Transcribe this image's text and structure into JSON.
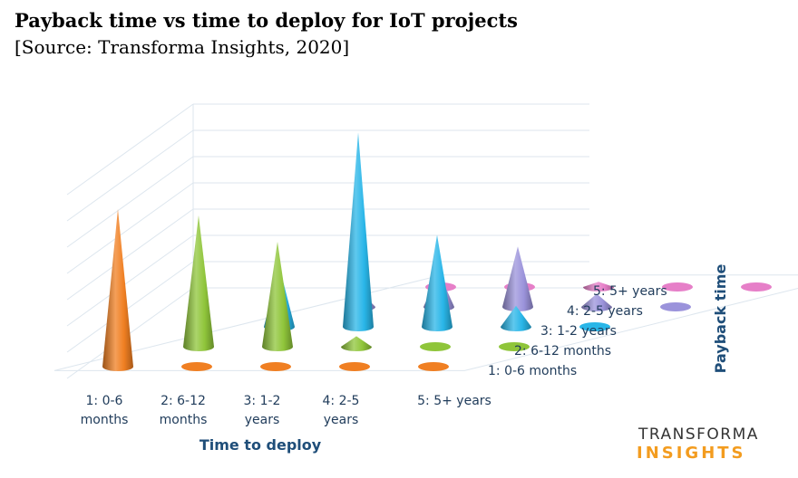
{
  "chart_data": {
    "type": "3d-cone",
    "title": "Payback time vs time to deploy for IoT projects",
    "subtitle": "[Source: Transforma Insights, 2020]",
    "xlabel": "Time to deploy",
    "zlabel": "Payback time",
    "x_categories": [
      "1: 0-6 months",
      "2: 6-12 months",
      "3: 1-2 years",
      "4: 2-5 years",
      "5: 5+ years"
    ],
    "x_tick_lines": [
      [
        "1: 0-6",
        "months"
      ],
      [
        "2: 6-12",
        "months"
      ],
      [
        "3: 1-2",
        "years"
      ],
      [
        "4: 2-5",
        "years"
      ],
      [
        "5: 5+ years"
      ]
    ],
    "series": [
      {
        "name": "1: 0-6 months",
        "color": "#f07f22",
        "values": [
          6,
          0,
          0,
          0,
          0
        ]
      },
      {
        "name": "2: 6-12 months",
        "color": "#8fc53a",
        "values": [
          5,
          4,
          0.4,
          0,
          0
        ]
      },
      {
        "name": "3: 1-2 years",
        "color": "#29b6e8",
        "values": [
          2.3,
          7.4,
          3.5,
          0.8,
          0
        ]
      },
      {
        "name": "4: 2-5 years",
        "color": "#9b93db",
        "values": [
          0.6,
          1.3,
          2.3,
          0.5,
          0
        ]
      },
      {
        "name": "5: 5+ years",
        "color": "#e67fc8",
        "values": [
          0,
          0,
          0.2,
          0,
          0
        ]
      }
    ],
    "grid": true
  },
  "logo": {
    "line1": "TRANSFORMA",
    "line2": "INSIGHTS"
  }
}
